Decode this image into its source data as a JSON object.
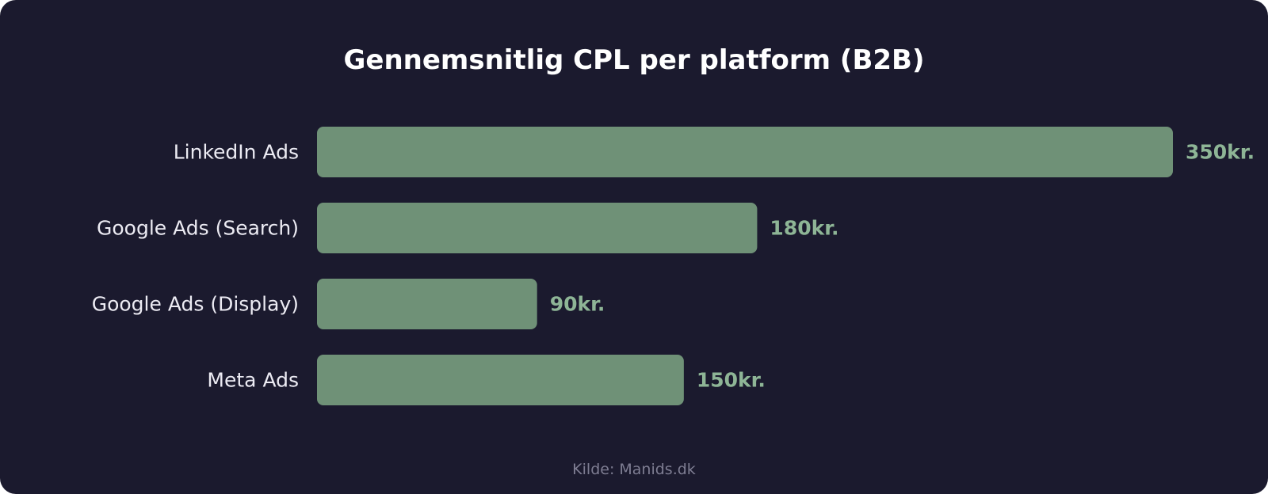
{
  "chart_data": {
    "type": "bar",
    "orientation": "horizontal",
    "title": "Gennemsnitlig CPL per platform (B2B)",
    "categories": [
      "LinkedIn Ads",
      "Google Ads (Search)",
      "Google Ads (Display)",
      "Meta Ads"
    ],
    "values": [
      350,
      180,
      90,
      150
    ],
    "value_labels": [
      "350kr.",
      "180kr.",
      "90kr.",
      "150kr."
    ],
    "xlim": [
      0,
      350
    ],
    "grid": false,
    "legend": "none",
    "source": "Kilde: Manids.dk"
  },
  "colors": {
    "background": "#1b1a2e",
    "bar": "#6f9177",
    "value_label": "#8eb596",
    "category_label": "#ecebf3",
    "title": "#ffffff",
    "source": "#7e7d92"
  }
}
